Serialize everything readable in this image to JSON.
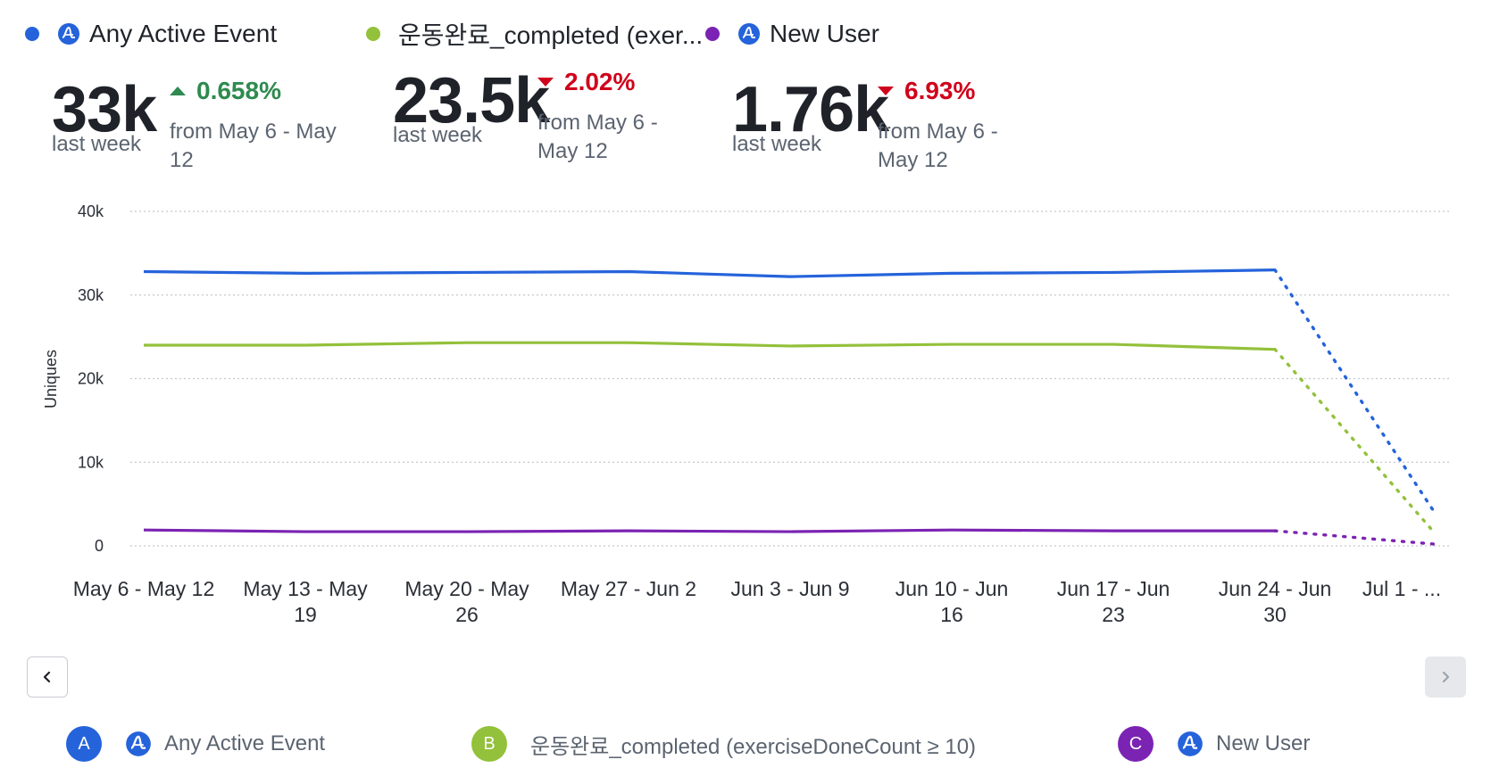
{
  "colors": {
    "series_a": "#2563db",
    "series_b": "#93c13b",
    "series_c": "#7b23b3",
    "positive": "#2e8a4f",
    "negative": "#d0021b"
  },
  "legend_top": [
    {
      "label": "Any Active Event",
      "icon": "amplitude-icon"
    },
    {
      "label": "운동완료_completed (exer...",
      "icon": null
    },
    {
      "label": "New User",
      "icon": "amplitude-icon"
    }
  ],
  "metrics": [
    {
      "value": "33k",
      "period": "last week",
      "delta": "0.658%",
      "direction": "up",
      "comparison": "from May 6 - May 12"
    },
    {
      "value": "23.5k",
      "period": "last week",
      "delta": "2.02%",
      "direction": "down",
      "comparison": "from May 6 - May 12"
    },
    {
      "value": "1.76k",
      "period": "last week",
      "delta": "6.93%",
      "direction": "down",
      "comparison": "from May 6 - May 12"
    }
  ],
  "chart_data": {
    "type": "line",
    "ylabel": "Uniques",
    "ylim": [
      0,
      40000
    ],
    "yticks": [
      "0",
      "10k",
      "20k",
      "30k",
      "40k"
    ],
    "ytick_values": [
      0,
      10000,
      20000,
      30000,
      40000
    ],
    "grid": true,
    "legend_position": "top",
    "categories": [
      [
        "May 6 - May 12"
      ],
      [
        "May 13 - May",
        "19"
      ],
      [
        "May 20 - May",
        "26"
      ],
      [
        "May 27 - Jun 2"
      ],
      [
        "Jun 3 - Jun 9"
      ],
      [
        "Jun 10 - Jun",
        "16"
      ],
      [
        "Jun 17 - Jun",
        "23"
      ],
      [
        "Jun 24 - Jun",
        "30"
      ],
      [
        "Jul 1 - ..."
      ]
    ],
    "incomplete_last_period": true,
    "series": [
      {
        "name": "Any Active Event",
        "values": [
          32800,
          32600,
          32700,
          32800,
          32200,
          32600,
          32700,
          33000,
          3800
        ]
      },
      {
        "name": "운동완료_completed (exerciseDoneCount ≥ 10)",
        "values": [
          24000,
          24000,
          24300,
          24300,
          23900,
          24100,
          24100,
          23500,
          1400
        ]
      },
      {
        "name": "New User",
        "values": [
          1900,
          1700,
          1700,
          1800,
          1700,
          1900,
          1800,
          1800,
          200
        ]
      }
    ]
  },
  "legend_bottom": [
    {
      "badge": "A",
      "icon": "amplitude-icon",
      "label": "Any Active Event"
    },
    {
      "badge": "B",
      "icon": null,
      "label": "운동완료_completed (exerciseDoneCount ≥ 10)"
    },
    {
      "badge": "C",
      "icon": "amplitude-icon",
      "label": "New User"
    }
  ],
  "nav": {
    "prev_icon": "chevron-left-icon",
    "next_icon": "chevron-right-icon"
  }
}
